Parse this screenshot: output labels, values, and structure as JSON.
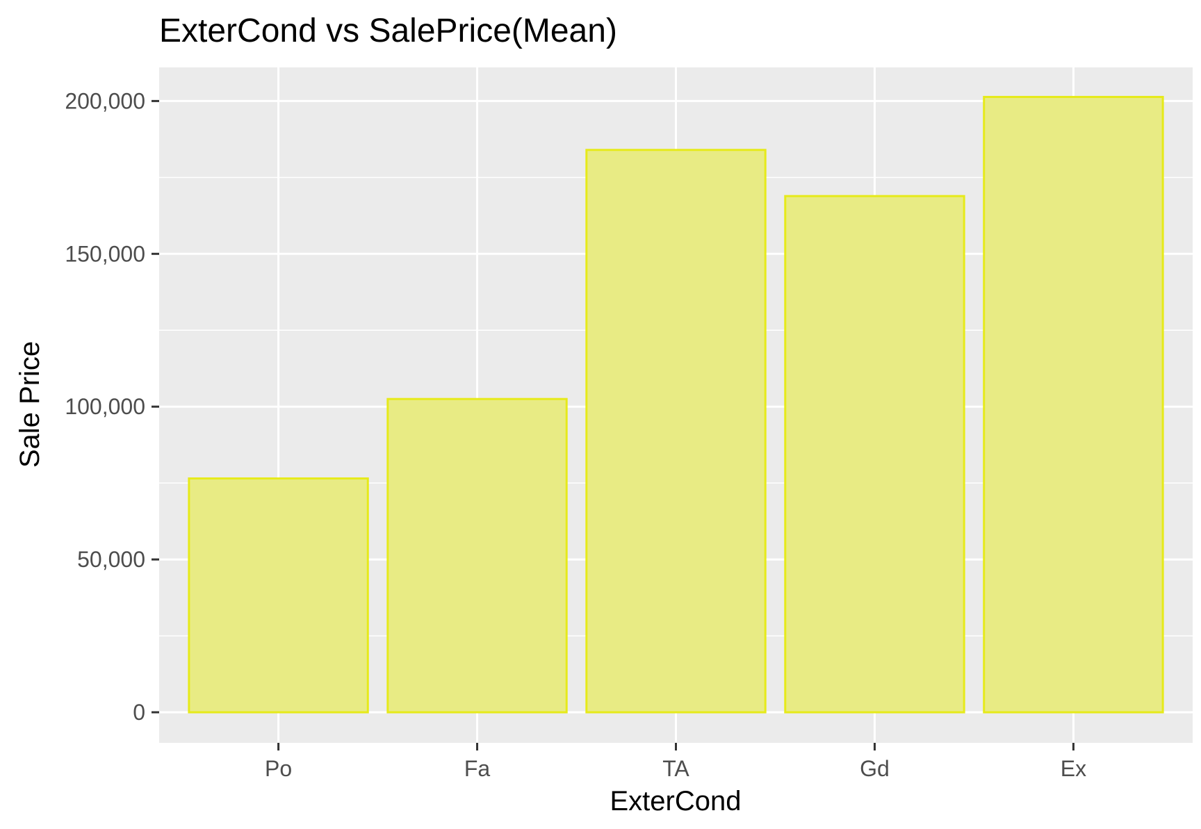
{
  "chart_data": {
    "type": "bar",
    "title": "ExterCond vs SalePrice(Mean)",
    "xlabel": "ExterCond",
    "ylabel": "Sale Price",
    "categories": [
      "Po",
      "Fa",
      "TA",
      "Gd",
      "Ex"
    ],
    "values": [
      76500,
      102500,
      184000,
      168900,
      201333
    ],
    "ylim": [
      -10000,
      211000
    ],
    "yticks": [
      0,
      50000,
      100000,
      150000,
      200000
    ],
    "ytick_labels": [
      "0",
      "50,000",
      "100,000",
      "150,000",
      "200,000"
    ],
    "grid": true,
    "legend": "none",
    "colors": {
      "panel_background": "#ebebeb",
      "grid": "#ffffff",
      "bar_fill": "#e8eb84",
      "bar_stroke": "#e6ea1a",
      "tick": "#333333"
    }
  }
}
